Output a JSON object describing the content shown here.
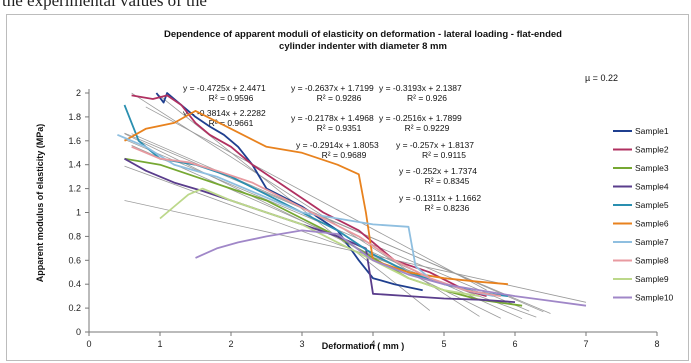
{
  "document": {
    "preceding_text": "the experimental values of the"
  },
  "chart_data": {
    "type": "line",
    "title": "Dependence of apparent moduli of elasticity on deformation - lateral loading - flat-ended cylinder indenter with diameter 8 mm",
    "title_lines": [
      "Dependence of apparent moduli of elasticity on deformation - lateral loading - flat-ended",
      "cylinder indenter with diameter 8 mm"
    ],
    "xlabel": "Deformation ( mm )",
    "ylabel": "Apparent modulus of elasticity (MPa)",
    "xlim": [
      0,
      8
    ],
    "ylim": [
      0,
      2
    ],
    "xticks": [
      "0",
      "1",
      "2",
      "3",
      "4",
      "5",
      "6",
      "7",
      "8"
    ],
    "yticks": [
      "0",
      "0.2",
      "0.4",
      "0.6",
      "0.8",
      "1",
      "1.2",
      "1.4",
      "1.6",
      "1.8",
      "2"
    ],
    "grid": false,
    "legend_position": "right",
    "annotation_mu": "µ = 0.22",
    "equations": [
      {
        "eq": "y = -0.4725x + 2.4471",
        "r2": "R² = 0.9596"
      },
      {
        "eq": "y = -0.3814x + 2.2282",
        "r2": "R² = 0.9661"
      },
      {
        "eq": "y = -0.2637x + 1.7199",
        "r2": "R² = 0.9286"
      },
      {
        "eq": "y = -0.2178x + 1.4968",
        "r2": "R² = 0.9351"
      },
      {
        "eq": "y = -0.2914x + 1.8053",
        "r2": "R² = 0.9689"
      },
      {
        "eq": "y = -0.3193x + 2.1387",
        "r2": "R² = 0.926"
      },
      {
        "eq": "y = -0.2516x + 1.7899",
        "r2": "R² = 0.9229"
      },
      {
        "eq": "y = -0.257x + 1.8137",
        "r2": "R² = 0.9115"
      },
      {
        "eq": "y = -0.252x + 1.7374",
        "r2": "R² = 0.8345"
      },
      {
        "eq": "y = -0.1311x + 1.1662",
        "r2": "R² = 0.8236"
      }
    ],
    "trendlines": [
      {
        "slope": -0.4725,
        "intercept": 2.4471,
        "x": [
          0.95,
          4.8
        ]
      },
      {
        "slope": -0.3814,
        "intercept": 2.2282,
        "x": [
          0.6,
          5.5
        ]
      },
      {
        "slope": -0.2637,
        "intercept": 1.7199,
        "x": [
          0.6,
          6.1
        ]
      },
      {
        "slope": -0.2178,
        "intercept": 1.4968,
        "x": [
          0.5,
          6.3
        ]
      },
      {
        "slope": -0.2914,
        "intercept": 1.8053,
        "x": [
          0.5,
          5.8
        ]
      },
      {
        "slope": -0.3193,
        "intercept": 2.1387,
        "x": [
          0.8,
          5.6
        ]
      },
      {
        "slope": -0.2516,
        "intercept": 1.7899,
        "x": [
          0.5,
          6.5
        ]
      },
      {
        "slope": -0.257,
        "intercept": 1.8137,
        "x": [
          0.6,
          6.4
        ]
      },
      {
        "slope": -0.252,
        "intercept": 1.7374,
        "x": [
          0.5,
          6.2
        ]
      },
      {
        "slope": -0.1311,
        "intercept": 1.1662,
        "x": [
          0.5,
          7.0
        ]
      }
    ],
    "series": [
      {
        "name": "Sample1",
        "color": "#1f3f8f",
        "x": [
          0.95,
          1.05,
          1.1,
          1.2,
          1.3,
          1.5,
          1.7,
          1.9,
          2.1,
          2.3,
          2.5,
          3.0,
          3.5,
          3.8,
          4.0,
          4.3,
          4.7
        ],
        "y": [
          2.0,
          1.92,
          2.0,
          1.95,
          1.9,
          1.8,
          1.72,
          1.65,
          1.55,
          1.4,
          1.2,
          1.05,
          0.85,
          0.6,
          0.45,
          0.4,
          0.35
        ]
      },
      {
        "name": "Sample2",
        "color": "#b03060",
        "x": [
          0.6,
          0.9,
          1.1,
          1.3,
          1.5,
          1.7,
          2.0,
          2.3,
          2.8,
          3.3,
          3.8,
          4.3,
          4.8,
          5.3,
          5.6
        ],
        "y": [
          1.98,
          1.95,
          1.98,
          1.9,
          1.75,
          1.65,
          1.55,
          1.4,
          1.2,
          1.0,
          0.85,
          0.6,
          0.5,
          0.35,
          0.3
        ]
      },
      {
        "name": "Sample3",
        "color": "#76a832",
        "x": [
          0.5,
          1.0,
          1.5,
          2.0,
          2.5,
          3.0,
          3.5,
          4.0,
          4.5,
          5.0,
          5.5,
          6.1
        ],
        "y": [
          1.45,
          1.4,
          1.3,
          1.2,
          1.1,
          0.95,
          0.8,
          0.62,
          0.45,
          0.35,
          0.27,
          0.22
        ]
      },
      {
        "name": "Sample4",
        "color": "#5a3d8c",
        "x": [
          0.5,
          0.8,
          1.2,
          1.6,
          2.0,
          2.5,
          3.0,
          3.5,
          3.9,
          4.0,
          4.5,
          5.0,
          5.5,
          6.0
        ],
        "y": [
          1.45,
          1.35,
          1.25,
          1.18,
          1.1,
          1.0,
          0.9,
          0.8,
          0.7,
          0.32,
          0.3,
          0.28,
          0.27,
          0.25
        ]
      },
      {
        "name": "Sample5",
        "color": "#2a8fb0",
        "x": [
          0.5,
          0.7,
          1.0,
          1.5,
          2.0,
          2.5,
          3.0,
          3.5,
          4.0,
          4.5,
          5.0,
          5.5,
          5.9
        ],
        "y": [
          1.9,
          1.6,
          1.45,
          1.4,
          1.3,
          1.15,
          1.0,
          0.85,
          0.65,
          0.5,
          0.4,
          0.33,
          0.3
        ]
      },
      {
        "name": "Sample6",
        "color": "#e8821e",
        "x": [
          0.5,
          0.8,
          1.2,
          1.5,
          2.0,
          2.5,
          3.0,
          3.5,
          3.8,
          3.9,
          4.0,
          4.5,
          5.0,
          5.5,
          5.9
        ],
        "y": [
          1.6,
          1.7,
          1.75,
          1.85,
          1.7,
          1.55,
          1.5,
          1.4,
          1.32,
          1.0,
          0.6,
          0.5,
          0.45,
          0.42,
          0.4
        ]
      },
      {
        "name": "Sample7",
        "color": "#8fbfe0",
        "x": [
          0.4,
          0.8,
          1.2,
          1.8,
          2.4,
          3.0,
          3.5,
          4.0,
          4.5,
          4.6,
          4.8,
          5.3,
          5.7
        ],
        "y": [
          1.65,
          1.55,
          1.4,
          1.3,
          1.15,
          1.0,
          0.95,
          0.9,
          0.88,
          0.55,
          0.45,
          0.35,
          0.3
        ]
      },
      {
        "name": "Sample8",
        "color": "#e89aa0",
        "x": [
          0.6,
          1.0,
          1.4,
          1.8,
          2.3,
          2.8,
          3.3,
          3.8,
          4.3,
          4.8,
          5.3,
          5.8
        ],
        "y": [
          1.55,
          1.45,
          1.42,
          1.35,
          1.25,
          1.1,
          0.95,
          0.8,
          0.6,
          0.45,
          0.35,
          0.3
        ]
      },
      {
        "name": "Sample9",
        "color": "#bcd88a",
        "x": [
          1.0,
          1.2,
          1.4,
          1.6,
          2.0,
          2.5,
          3.0,
          3.5,
          4.0,
          4.5,
          5.0,
          5.5
        ],
        "y": [
          0.95,
          1.05,
          1.15,
          1.2,
          1.1,
          1.0,
          0.9,
          0.75,
          0.6,
          0.45,
          0.35,
          0.3
        ]
      },
      {
        "name": "Sample10",
        "color": "#a087c8",
        "x": [
          1.5,
          1.8,
          2.1,
          2.5,
          3.0,
          3.5,
          4.0,
          4.5,
          5.0,
          5.5,
          6.0,
          6.5,
          7.0
        ],
        "y": [
          0.62,
          0.7,
          0.75,
          0.8,
          0.85,
          0.82,
          0.6,
          0.48,
          0.4,
          0.35,
          0.3,
          0.26,
          0.22
        ]
      }
    ]
  }
}
